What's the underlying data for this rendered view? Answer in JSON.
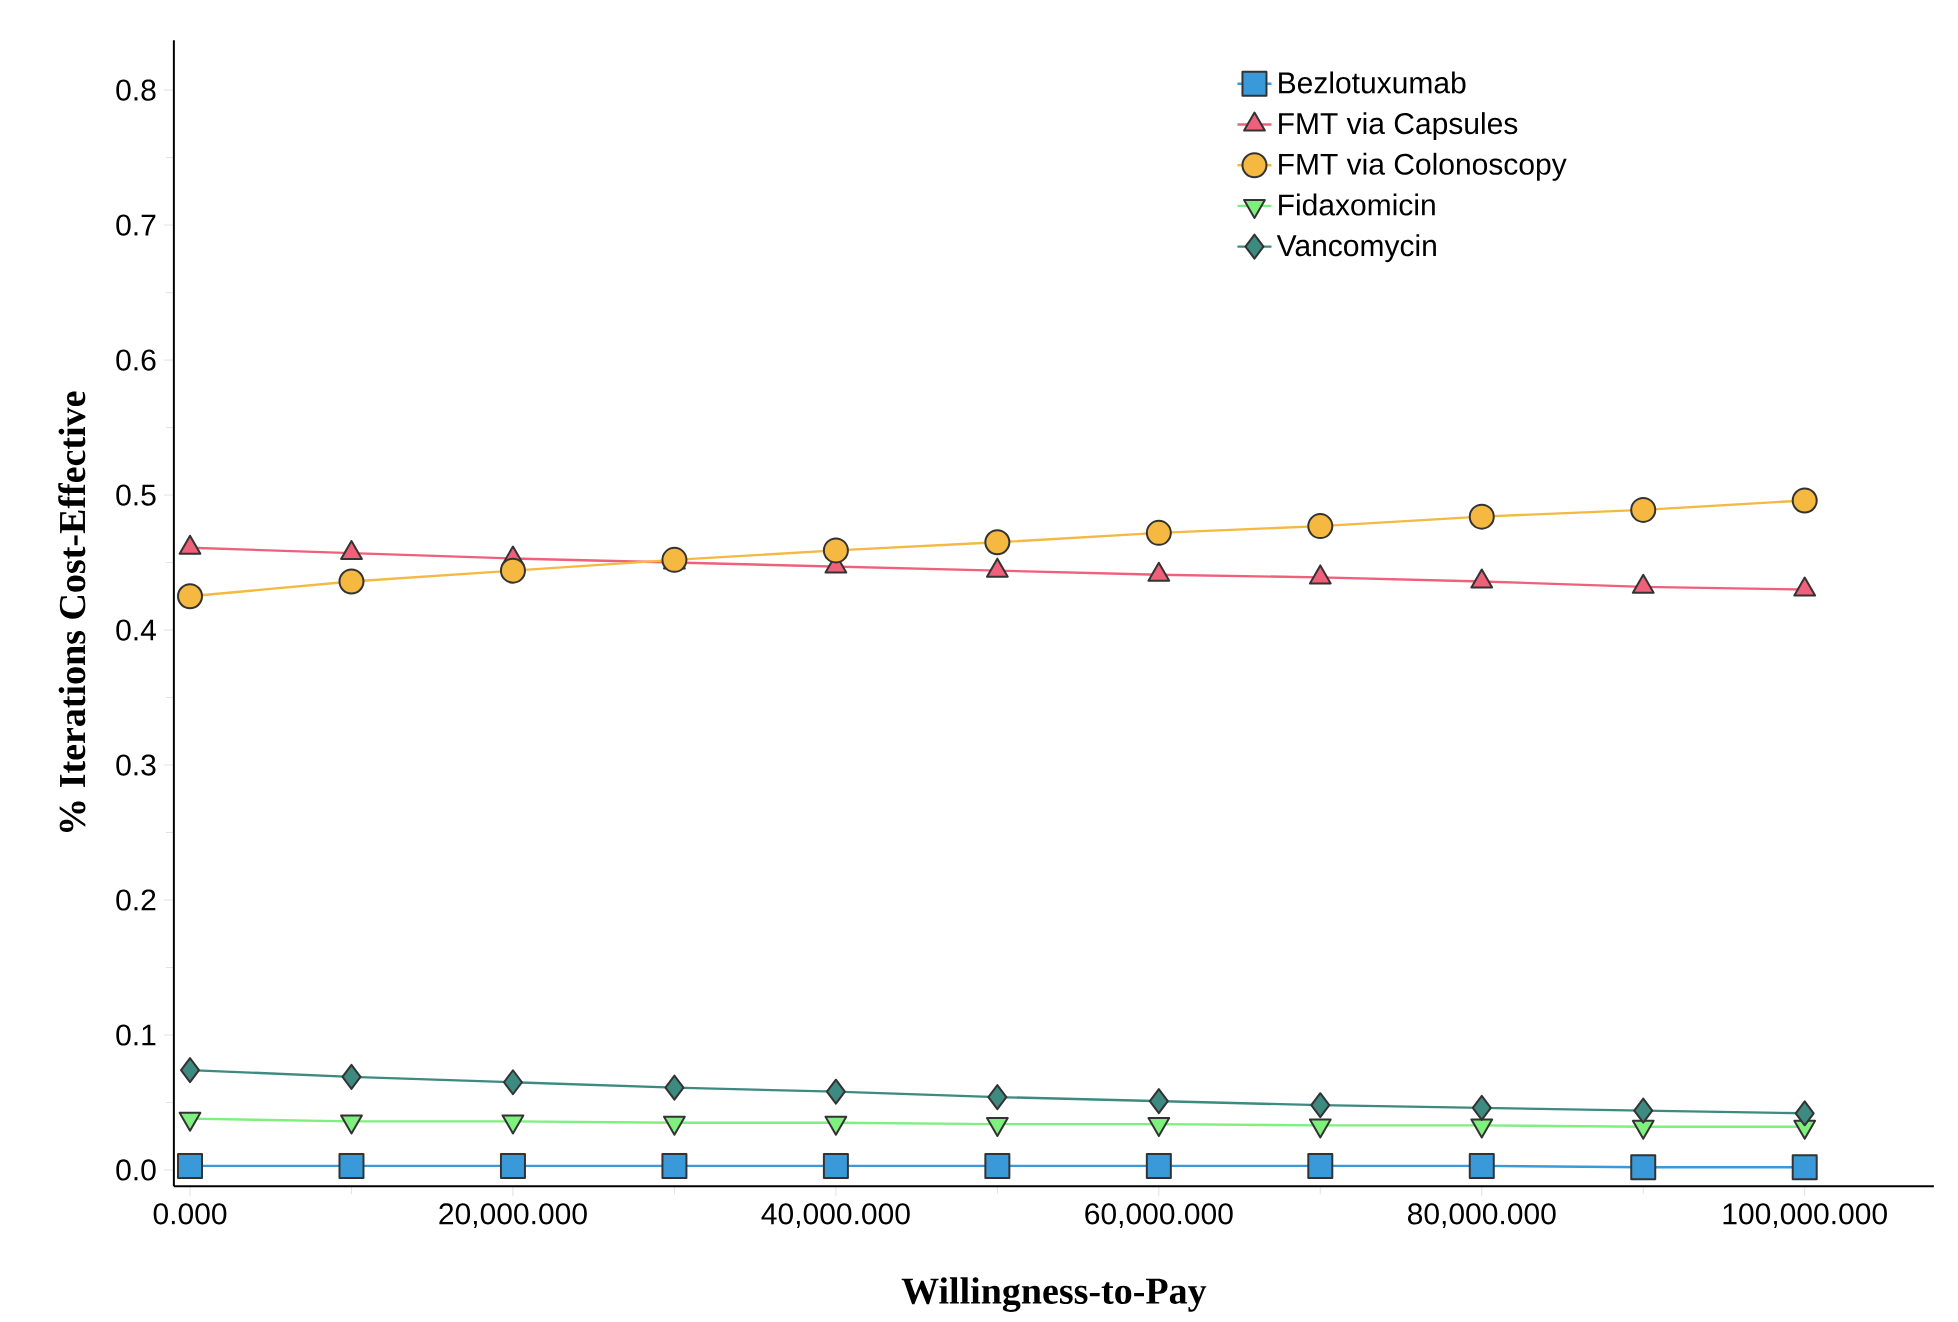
{
  "chart_data": {
    "type": "line",
    "xlabel": "Willingness-to-Pay",
    "ylabel": "% Iterations Cost-Effective",
    "x": [
      0,
      10000,
      20000,
      30000,
      40000,
      50000,
      60000,
      70000,
      80000,
      90000,
      100000
    ],
    "series": [
      {
        "name": "Bezlotuxumab",
        "color": "#3a9ad9",
        "marker": "square",
        "values": [
          0.003,
          0.003,
          0.003,
          0.003,
          0.003,
          0.003,
          0.003,
          0.003,
          0.003,
          0.002,
          0.002
        ]
      },
      {
        "name": "FMT via Capsules",
        "color": "#f0607a",
        "marker": "triangle",
        "values": [
          0.461,
          0.457,
          0.453,
          0.45,
          0.447,
          0.444,
          0.441,
          0.439,
          0.436,
          0.432,
          0.43
        ]
      },
      {
        "name": "FMT via Colonoscopy",
        "color": "#f5b942",
        "marker": "circle",
        "values": [
          0.425,
          0.436,
          0.444,
          0.452,
          0.459,
          0.465,
          0.472,
          0.477,
          0.484,
          0.489,
          0.496
        ]
      },
      {
        "name": "Fidaxomicin",
        "color": "#7ef07e",
        "marker": "triangle down",
        "values": [
          0.038,
          0.036,
          0.036,
          0.035,
          0.035,
          0.034,
          0.034,
          0.033,
          0.033,
          0.032,
          0.032
        ]
      },
      {
        "name": "Vancomycin",
        "color": "#3d8a80",
        "marker": "diamond",
        "values": [
          0.074,
          0.069,
          0.065,
          0.061,
          0.058,
          0.054,
          0.051,
          0.048,
          0.046,
          0.044,
          0.042
        ]
      }
    ],
    "xlim": [
      -1000,
      108000
    ],
    "ylim": [
      -0.012,
      0.837
    ],
    "xticks": [
      {
        "value": 0,
        "label": "0.000"
      },
      {
        "value": 20000,
        "label": "20,000.000"
      },
      {
        "value": 40000,
        "label": "40,000.000"
      },
      {
        "value": 60000,
        "label": "60,000.000"
      },
      {
        "value": 80000,
        "label": "80,000.000"
      },
      {
        "value": 100000,
        "label": "100,000.000"
      }
    ],
    "yticks": [
      {
        "value": 0,
        "label": "0.0"
      },
      {
        "value": 0.1,
        "label": "0.1"
      },
      {
        "value": 0.2,
        "label": "0.2"
      },
      {
        "value": 0.3,
        "label": "0.3"
      },
      {
        "value": 0.4,
        "label": "0.4"
      },
      {
        "value": 0.5,
        "label": "0.5"
      },
      {
        "value": 0.6,
        "label": "0.6"
      },
      {
        "value": 0.7,
        "label": "0.7"
      },
      {
        "value": 0.8,
        "label": "0.8"
      }
    ],
    "legend": "top right",
    "grid": false,
    "line_style": "solid"
  }
}
